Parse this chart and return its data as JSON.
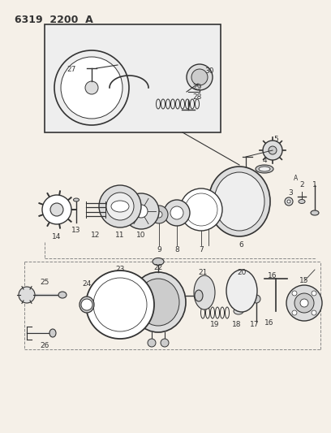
{
  "title": "6319  2200  A",
  "bg_color": "#f5f0e8",
  "line_color": "#333333",
  "gray1": "#888888",
  "gray2": "#aaaaaa",
  "gray3": "#cccccc",
  "gray4": "#dddddd",
  "gray5": "#eeeeee",
  "white": "#ffffff",
  "figsize": [
    4.08,
    5.33
  ],
  "dpi": 100
}
